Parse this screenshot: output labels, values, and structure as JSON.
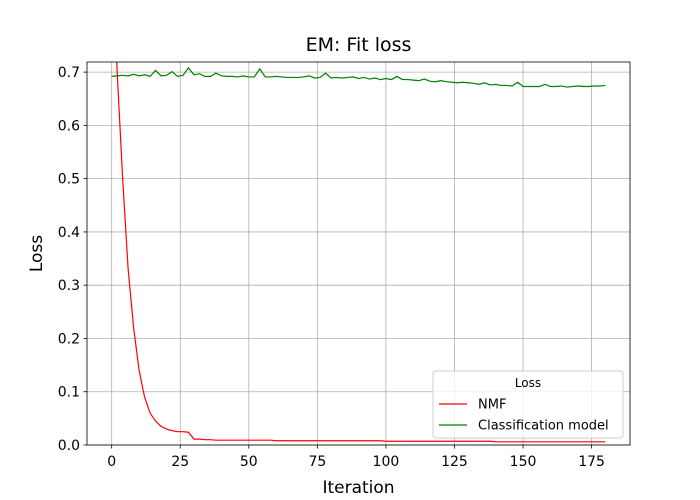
{
  "chart_data": {
    "type": "line",
    "title": "EM: Fit loss",
    "x_label": "Iteration",
    "y_label": "Loss",
    "x": [
      0,
      2,
      4,
      6,
      8,
      10,
      12,
      14,
      16,
      18,
      20,
      22,
      24,
      26,
      28,
      30,
      32,
      34,
      36,
      38,
      40,
      42,
      44,
      46,
      48,
      50,
      52,
      54,
      56,
      58,
      60,
      62,
      64,
      66,
      68,
      70,
      72,
      74,
      76,
      78,
      80,
      82,
      84,
      86,
      88,
      90,
      92,
      94,
      96,
      98,
      100,
      102,
      104,
      106,
      108,
      110,
      112,
      114,
      116,
      118,
      120,
      122,
      124,
      126,
      128,
      130,
      132,
      134,
      136,
      138,
      140,
      142,
      144,
      146,
      148,
      150,
      152,
      154,
      156,
      158,
      160,
      162,
      164,
      166,
      168,
      170,
      172,
      174,
      176,
      178,
      180
    ],
    "series": [
      {
        "name": "NMF",
        "color": "#ff0000",
        "values": [
          0.95,
          0.7,
          0.5,
          0.33,
          0.22,
          0.14,
          0.09,
          0.06,
          0.045,
          0.035,
          0.03,
          0.027,
          0.025,
          0.025,
          0.024,
          0.011,
          0.011,
          0.01,
          0.01,
          0.009,
          0.009,
          0.009,
          0.009,
          0.009,
          0.009,
          0.009,
          0.009,
          0.009,
          0.009,
          0.009,
          0.008,
          0.008,
          0.008,
          0.008,
          0.008,
          0.008,
          0.008,
          0.008,
          0.008,
          0.008,
          0.008,
          0.008,
          0.008,
          0.008,
          0.008,
          0.008,
          0.008,
          0.008,
          0.008,
          0.008,
          0.007,
          0.007,
          0.007,
          0.007,
          0.007,
          0.007,
          0.007,
          0.007,
          0.007,
          0.007,
          0.007,
          0.007,
          0.007,
          0.007,
          0.007,
          0.007,
          0.007,
          0.007,
          0.007,
          0.007,
          0.006,
          0.006,
          0.006,
          0.006,
          0.006,
          0.006,
          0.006,
          0.006,
          0.006,
          0.006,
          0.006,
          0.006,
          0.006,
          0.006,
          0.006,
          0.006,
          0.006,
          0.006,
          0.006,
          0.006,
          0.006
        ]
      },
      {
        "name": "Classification model",
        "color": "#008000",
        "values": [
          0.692,
          0.693,
          0.694,
          0.693,
          0.696,
          0.693,
          0.695,
          0.692,
          0.703,
          0.693,
          0.694,
          0.701,
          0.692,
          0.694,
          0.708,
          0.695,
          0.697,
          0.692,
          0.692,
          0.698,
          0.693,
          0.692,
          0.692,
          0.691,
          0.693,
          0.691,
          0.691,
          0.706,
          0.691,
          0.691,
          0.692,
          0.691,
          0.69,
          0.69,
          0.69,
          0.691,
          0.693,
          0.689,
          0.69,
          0.698,
          0.689,
          0.69,
          0.689,
          0.69,
          0.691,
          0.688,
          0.69,
          0.687,
          0.689,
          0.686,
          0.688,
          0.686,
          0.692,
          0.686,
          0.686,
          0.685,
          0.684,
          0.687,
          0.683,
          0.682,
          0.684,
          0.682,
          0.681,
          0.68,
          0.681,
          0.68,
          0.679,
          0.677,
          0.68,
          0.676,
          0.677,
          0.675,
          0.675,
          0.674,
          0.681,
          0.673,
          0.673,
          0.673,
          0.673,
          0.677,
          0.673,
          0.673,
          0.674,
          0.672,
          0.673,
          0.674,
          0.673,
          0.673,
          0.674,
          0.674,
          0.675
        ]
      }
    ],
    "legend_title": "Loss",
    "legend": "lower right",
    "xlim": [
      -9,
      189
    ],
    "ylim": [
      0,
      0.719
    ],
    "xticks": [
      0,
      25,
      50,
      75,
      100,
      125,
      150,
      175
    ],
    "yticks": [
      {
        "value": 0,
        "label": "0.0"
      },
      0.1,
      0.2,
      0.3,
      0.4,
      0.5,
      0.6,
      0.7
    ],
    "grid": true
  }
}
